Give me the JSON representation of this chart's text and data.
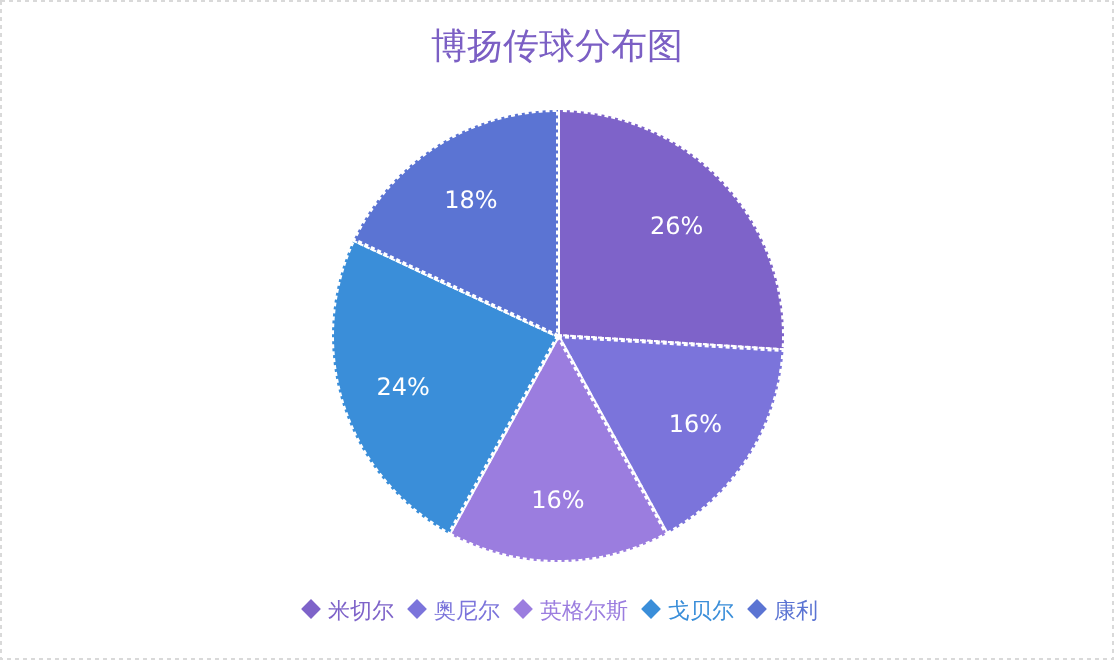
{
  "chart_data": {
    "type": "pie",
    "title": "博扬传球分布图",
    "categories": [
      "米切尔",
      "奥尼尔",
      "英格尔斯",
      "戈贝尔",
      "康利"
    ],
    "values": [
      26,
      16,
      16,
      24,
      18
    ],
    "colors": [
      "#7e63c9",
      "#7b74db",
      "#9b7ddf",
      "#3a8ed9",
      "#5b74d3"
    ],
    "value_labels": [
      "26%",
      "16%",
      "16%",
      "24%",
      "18%"
    ],
    "legend": "bottom"
  }
}
